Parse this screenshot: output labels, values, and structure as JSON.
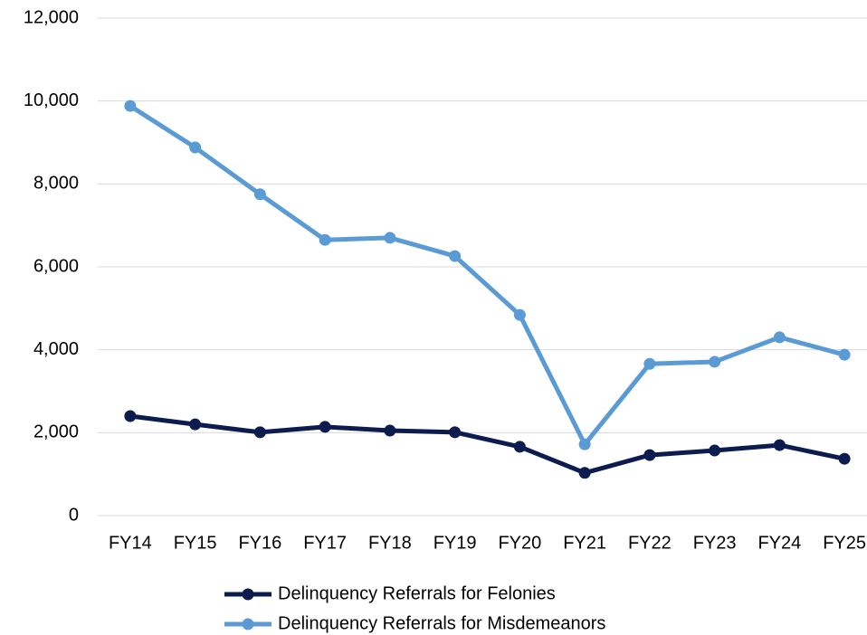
{
  "chart_data": {
    "type": "line",
    "categories": [
      "FY14",
      "FY15",
      "FY16",
      "FY17",
      "FY18",
      "FY19",
      "FY20",
      "FY21",
      "FY22",
      "FY23",
      "FY24",
      "FY25"
    ],
    "series": [
      {
        "name": "Delinquency Referrals for Felonies",
        "color": "#0c1c4e",
        "values": [
          2400,
          2200,
          2010,
          2140,
          2050,
          2010,
          1660,
          1030,
          1460,
          1570,
          1700,
          1370
        ]
      },
      {
        "name": "Delinquency Referrals for Misdemeanors",
        "color": "#5b9bd5",
        "values": [
          9880,
          8880,
          7750,
          6650,
          6700,
          6260,
          4840,
          1720,
          3660,
          3710,
          4300,
          3880
        ]
      }
    ],
    "ylim": [
      0,
      12000
    ],
    "yticks": [
      0,
      {
        "value": 2000,
        "label": "2,000"
      },
      {
        "value": 4000,
        "label": "4,000"
      },
      {
        "value": 6000,
        "label": "6,000"
      },
      {
        "value": 8000,
        "label": "8,000"
      },
      {
        "value": 10000,
        "label": "10,000"
      },
      {
        "value": 12000,
        "label": "12,000"
      }
    ],
    "grid": true,
    "legend": "bottom"
  }
}
